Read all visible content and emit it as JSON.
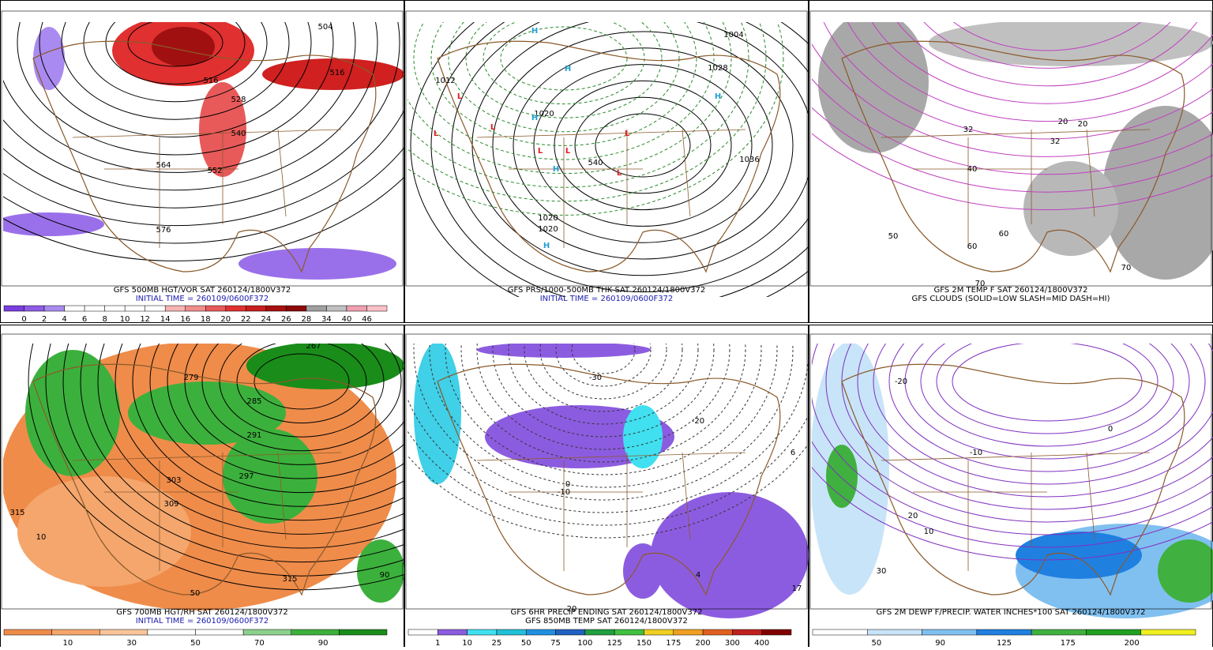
{
  "panels": [
    {
      "caption": [
        "GFS 500MB HGT/VOR SAT 260124/1800V372",
        "INITIAL TIME = 260109/0600F372"
      ],
      "labels": [
        "504",
        "516",
        "516",
        "528",
        "540",
        "552",
        "564",
        "576"
      ],
      "colorbar": {
        "colors": [
          "#7a3ee0",
          "#8e5ce6",
          "#a98af0",
          "#ffffff",
          "#ffffff",
          "#ffffff",
          "#ffffff",
          "#ffffff",
          "#f7b3b3",
          "#f08c8c",
          "#e85a5a",
          "#e03030",
          "#c81e1e",
          "#a81010",
          "#8c0a0a",
          "#a0a0a0",
          "#c0c0c0",
          "#f0a0b0",
          "#ffc0c8"
        ],
        "labels": [
          "0",
          "2",
          "4",
          "6",
          "8",
          "10",
          "12",
          "14",
          "16",
          "18",
          "20",
          "22",
          "24",
          "26",
          "28",
          "34",
          "40",
          "46"
        ]
      }
    },
    {
      "caption": [
        "GFS PRS/1000-500MB THK SAT 260124/1800V372",
        "INITIAL TIME = 260109/0600F372"
      ],
      "labels": [
        "1012",
        "1020",
        "1020",
        "1020",
        "1004",
        "1028",
        "1036",
        "540"
      ],
      "highs": [
        "H",
        "H",
        "H",
        "H",
        "H",
        "H"
      ],
      "lows": [
        "L",
        "L",
        "L",
        "L",
        "L",
        "L",
        "L"
      ]
    },
    {
      "caption": [
        "GFS 2M TEMP F SAT 260124/1800V372",
        "GFS CLOUDS (SOLID=LOW SLASH=MID DASH=HI)"
      ],
      "labels": [
        "32",
        "32",
        "20",
        "20",
        "40",
        "50",
        "60",
        "60",
        "70",
        "70"
      ]
    },
    {
      "caption": [
        "GFS 700MB HGT/RH SAT 260124/1800V372",
        "INITIAL TIME = 260109/0600F372"
      ],
      "labels": [
        "267",
        "279",
        "285",
        "291",
        "297",
        "303",
        "309",
        "315",
        "315",
        "10",
        "50",
        "90"
      ],
      "colorbar": {
        "colors": [
          "#ef8c4a",
          "#f4a66c",
          "#f8c49a",
          "#ffffff",
          "#ffffff",
          "#8cd08c",
          "#3cb03c",
          "#1a8c1a"
        ],
        "labels": [
          "10",
          "30",
          "50",
          "70",
          "90"
        ]
      }
    },
    {
      "caption": [
        "GFS 6HR PRECIP ENDING SAT 260124/1800V372",
        "GFS 850MB TEMP SAT 260124/1800V372"
      ],
      "labels": [
        "-30",
        "-20",
        "-10",
        "0",
        "20",
        "4",
        "6",
        "17"
      ],
      "colorbar": {
        "colors": [
          "#ffffff",
          "#8c5ce0",
          "#40e0f0",
          "#20c0d8",
          "#2090e0",
          "#2060c0",
          "#20a040",
          "#40c040",
          "#f0d020",
          "#f0a020",
          "#e06020",
          "#c02020",
          "#800000"
        ],
        "labels": [
          "1",
          "10",
          "25",
          "50",
          "75",
          "100",
          "125",
          "150",
          "175",
          "200",
          "300",
          "400"
        ]
      }
    },
    {
      "caption": [
        "GFS 2M DEWP F/PRECIP. WATER INCHES*100 SAT 260124/1800V372"
      ],
      "labels": [
        "-20",
        "-10",
        "0",
        "10",
        "20",
        "30"
      ],
      "colorbar": {
        "colors": [
          "#ffffff",
          "#c8e4f8",
          "#80c0f0",
          "#2080e0",
          "#40b040",
          "#20a020",
          "#f0f020"
        ],
        "labels": [
          "50",
          "90",
          "125",
          "175",
          "200"
        ]
      }
    }
  ]
}
